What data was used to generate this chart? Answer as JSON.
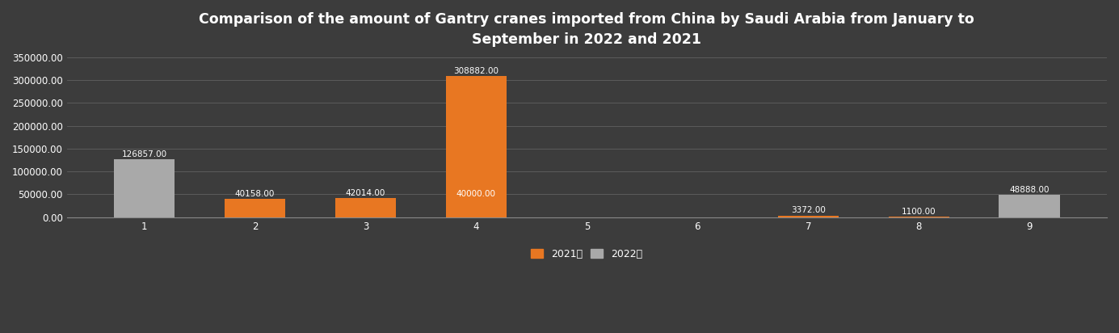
{
  "title": "Comparison of the amount of Gantry cranes imported from China by Saudi Arabia from January to\nSeptember in 2022 and 2021",
  "categories": [
    1,
    2,
    3,
    4,
    5,
    6,
    7,
    8,
    9
  ],
  "values_2021": [
    0,
    40158,
    42014,
    308882,
    0,
    0,
    3372,
    1100,
    0
  ],
  "values_2022": [
    126857,
    0,
    0,
    40000,
    0,
    0,
    0,
    0,
    48888
  ],
  "labels_2021": [
    "",
    "40158.00",
    "42014.00",
    "308882.00",
    "",
    "",
    "3372.00",
    "1100.00",
    ""
  ],
  "labels_2022": [
    "126857.00",
    "",
    "",
    "40000.00",
    "",
    "",
    "",
    "",
    "48888.00"
  ],
  "color_2021": "#E87722",
  "color_2022": "#A9A9A9",
  "background_color": "#3C3C3C",
  "grid_color": "#606060",
  "text_color": "#FFFFFF",
  "ylim": [
    0,
    350000
  ],
  "yticks": [
    0,
    50000,
    100000,
    150000,
    200000,
    250000,
    300000,
    350000
  ],
  "legend_2021": "2021年",
  "legend_2022": "2022年",
  "bar_width": 0.55,
  "title_fontsize": 12.5,
  "label_fontsize": 7.5,
  "tick_fontsize": 8.5,
  "legend_fontsize": 9
}
